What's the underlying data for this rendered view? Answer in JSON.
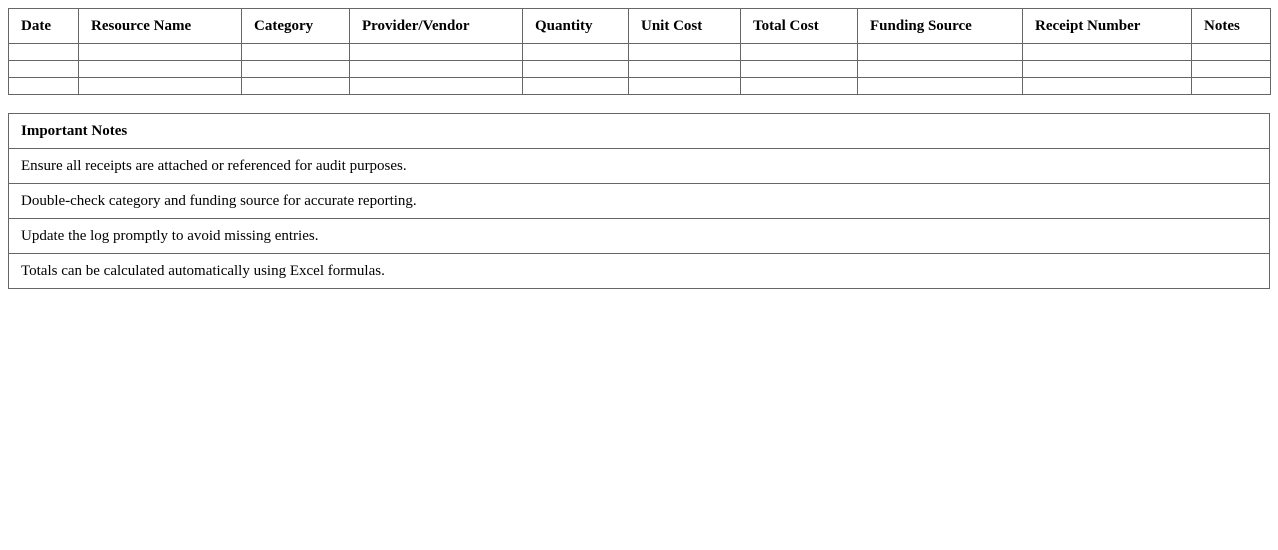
{
  "log_table": {
    "columns": [
      "Date",
      "Resource Name",
      "Category",
      "Provider/Vendor",
      "Quantity",
      "Unit Cost",
      "Total Cost",
      "Funding Source",
      "Receipt Number",
      "Notes"
    ],
    "rows": [
      [
        "",
        "",
        "",
        "",
        "",
        "",
        "",
        "",
        "",
        ""
      ],
      [
        "",
        "",
        "",
        "",
        "",
        "",
        "",
        "",
        "",
        ""
      ],
      [
        "",
        "",
        "",
        "",
        "",
        "",
        "",
        "",
        "",
        ""
      ]
    ]
  },
  "notes": {
    "title": "Important Notes",
    "items": [
      "Ensure all receipts are attached or referenced for audit purposes.",
      "Double-check category and funding source for accurate reporting.",
      "Update the log promptly to avoid missing entries.",
      "Totals can be calculated automatically using Excel formulas."
    ]
  }
}
